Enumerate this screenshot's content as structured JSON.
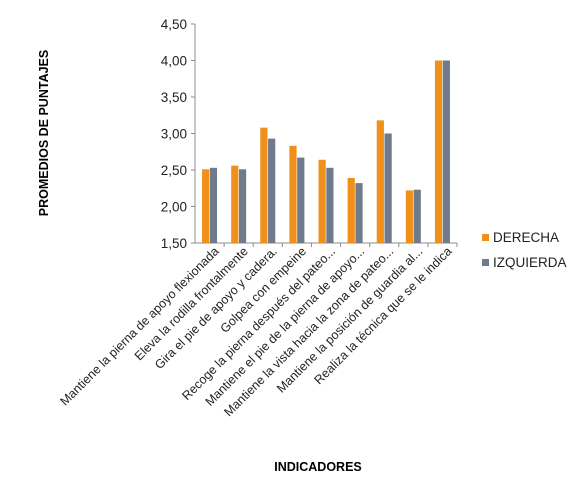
{
  "chart_data": {
    "type": "bar",
    "title": "",
    "xlabel": "INDICADORES",
    "ylabel": "PROMEDIOS DE PUNTAJES",
    "ylim": [
      1.5,
      4.5
    ],
    "yticks": [
      "1,50",
      "2,00",
      "2,50",
      "3,00",
      "3,50",
      "4,00",
      "4,50"
    ],
    "grid": false,
    "legend_position": "right",
    "categories": [
      "Mantiene la pierna de apoyo flexionada",
      "Eleva la rodilla frontalmente",
      "Gira el pie de apoyo y cadera.",
      "Golpea con empeine",
      "Recoge la pierna después del pateo...",
      "Mantiene el pie de la pierna de apoyo...",
      "Mantiene la vista hacia la zona de pateo...",
      "Mantiene la posición de guardia al...",
      "Realiza la técnica que se le indica"
    ],
    "series": [
      {
        "name": "DERECHA",
        "color": "#f0901a",
        "values": [
          2.51,
          2.56,
          3.08,
          2.83,
          2.64,
          2.39,
          3.18,
          2.22,
          4.0
        ]
      },
      {
        "name": "IZQUIERDA",
        "color": "#6f7a8a",
        "values": [
          2.53,
          2.51,
          2.93,
          2.67,
          2.53,
          2.32,
          3.0,
          2.23,
          4.0
        ]
      }
    ]
  }
}
